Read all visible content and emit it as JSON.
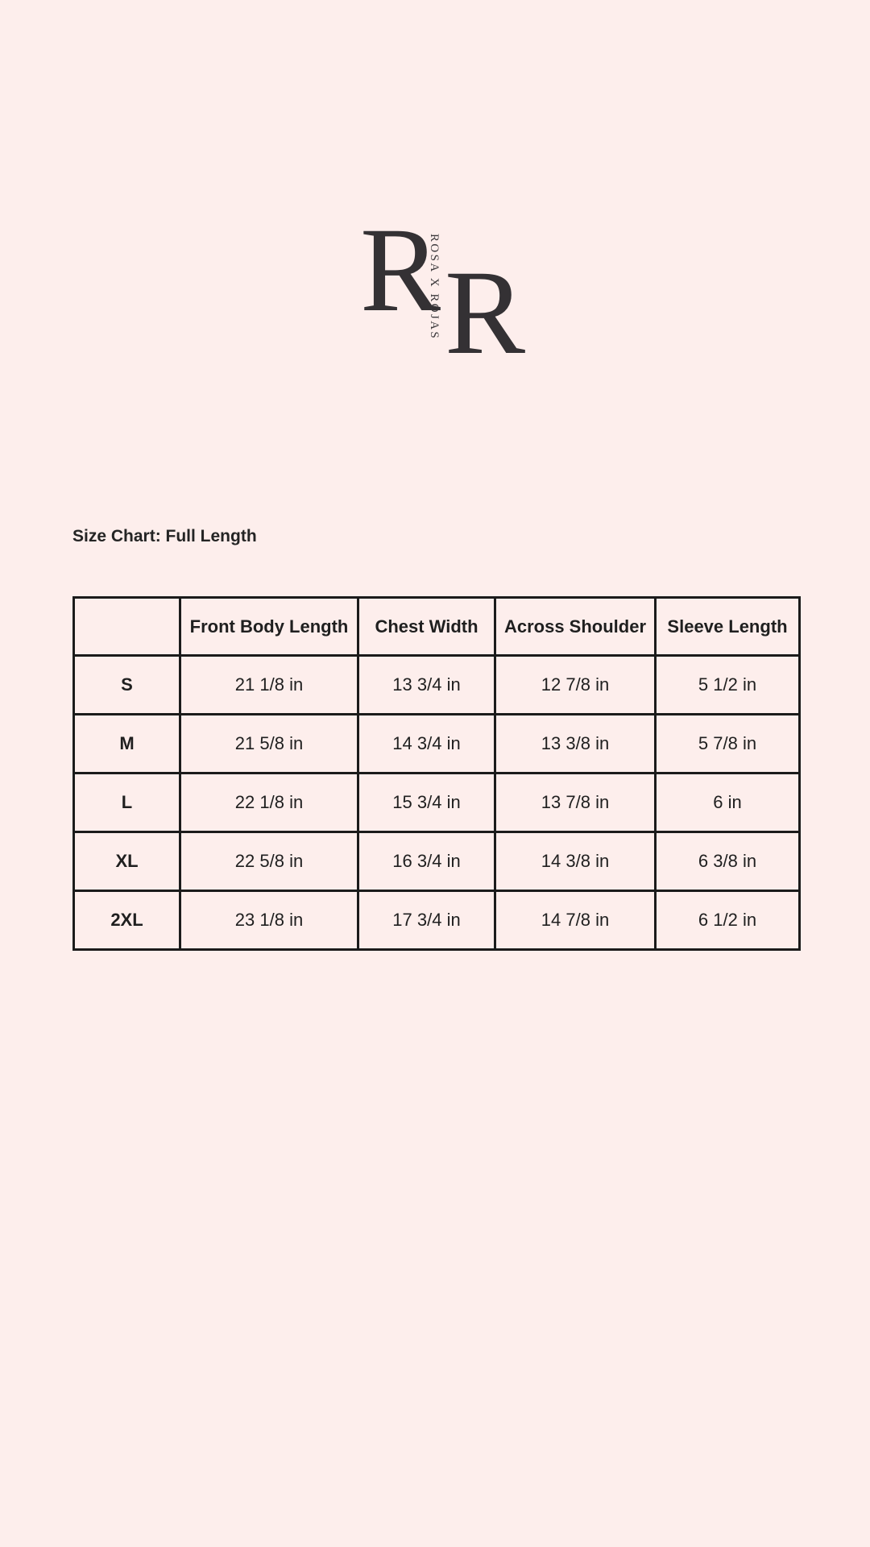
{
  "page": {
    "background_color": "#fdeeec",
    "text_color": "#242424",
    "border_color": "#1b1b1b",
    "logo_color": "#343134"
  },
  "logo": {
    "monogram_left": "R",
    "monogram_right": "R",
    "brand_name_vertical": "ROSA X ROJAS"
  },
  "section": {
    "title": "Size Chart: Full Length"
  },
  "table": {
    "headers": [
      "",
      "Front Body Length",
      "Chest Width",
      "Across Shoulder",
      "Sleeve Length"
    ],
    "rows": [
      [
        "S",
        "21 1/8 in",
        "13 3/4 in",
        "12 7/8 in",
        "5 1/2 in"
      ],
      [
        "M",
        "21 5/8 in",
        "14 3/4 in",
        "13 3/8 in",
        "5 7/8 in"
      ],
      [
        "L",
        "22 1/8 in",
        "15 3/4 in",
        "13 7/8 in",
        "6 in"
      ],
      [
        "XL",
        "22 5/8 in",
        "16 3/4 in",
        "14 3/8 in",
        "6 3/8 in"
      ],
      [
        "2XL",
        "23 1/8 in",
        "17 3/4 in",
        "14 7/8 in",
        "6 1/2 in"
      ]
    ]
  }
}
